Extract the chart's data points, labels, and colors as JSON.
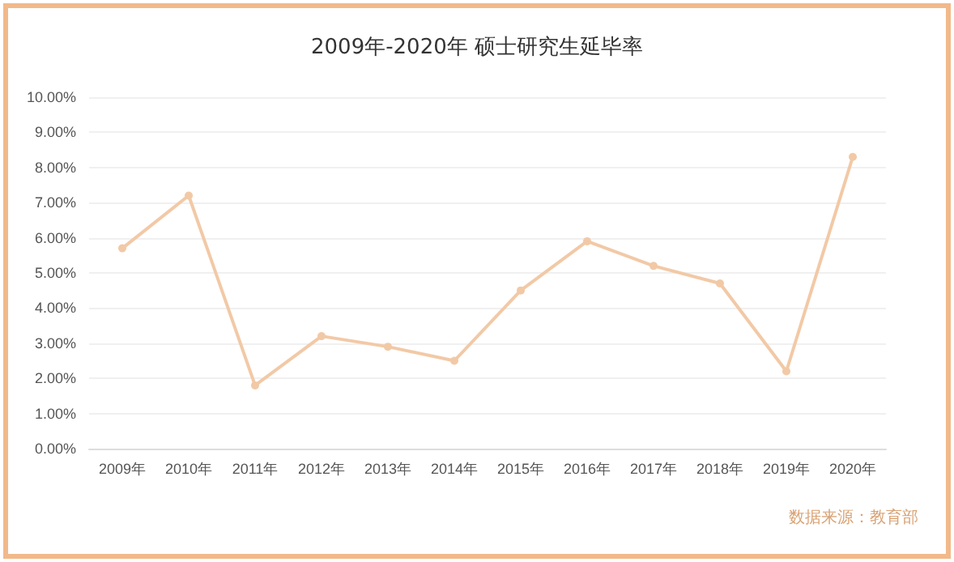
{
  "chart_data": {
    "type": "line",
    "title": "2009年-2020年 硕士研究生延毕率",
    "categories": [
      "2009年",
      "2010年",
      "2011年",
      "2012年",
      "2013年",
      "2014年",
      "2015年",
      "2016年",
      "2017年",
      "2018年",
      "2019年",
      "2020年"
    ],
    "series": [
      {
        "color": "#f2c9a6",
        "values": [
          5.7,
          7.2,
          1.8,
          3.2,
          2.9,
          2.5,
          4.5,
          5.9,
          5.2,
          4.7,
          2.2,
          8.3
        ]
      }
    ],
    "ylim": [
      0,
      10
    ],
    "yticks": [
      {
        "value": 0,
        "label": "0.00%"
      },
      {
        "value": 1,
        "label": "1.00%"
      },
      {
        "value": 2,
        "label": "2.00%"
      },
      {
        "value": 3,
        "label": "3.00%"
      },
      {
        "value": 4,
        "label": "4.00%"
      },
      {
        "value": 5,
        "label": "5.00%"
      },
      {
        "value": 6,
        "label": "6.00%"
      },
      {
        "value": 7,
        "label": "7.00%"
      },
      {
        "value": 8,
        "label": "8.00%"
      },
      {
        "value": 9,
        "label": "9.00%"
      },
      {
        "value": 10,
        "label": "10.00%"
      }
    ],
    "grid": "y",
    "marker": "circle",
    "line_style": "solid",
    "annotations": [
      "数据来源：教育部"
    ]
  }
}
